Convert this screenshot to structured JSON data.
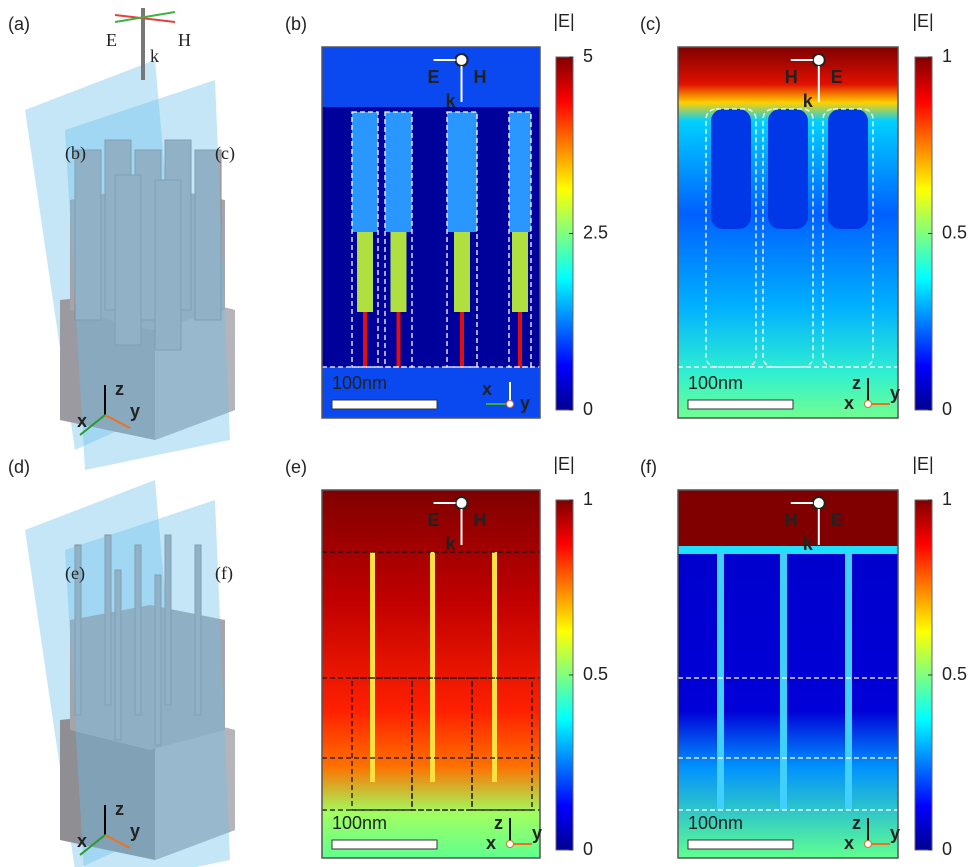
{
  "panels": [
    {
      "label": "(a)",
      "field": [
        "E",
        "H",
        "k"
      ],
      "plane_labels": [
        "(b)",
        "(c)"
      ],
      "axes": [
        "z",
        "x",
        "y"
      ]
    },
    {
      "label": "(b)",
      "colorbar_title": "|E|",
      "colorbar_ticks": [
        5,
        2.5,
        0
      ],
      "field": [
        "E",
        "H",
        "k"
      ],
      "scale_bar": "100nm",
      "axes": [
        "x",
        "y"
      ]
    },
    {
      "label": "(c)",
      "colorbar_title": "|E|",
      "colorbar_ticks": [
        1,
        0.5,
        0
      ],
      "field": [
        "H",
        "E",
        "k"
      ],
      "scale_bar": "100nm",
      "axes": [
        "z",
        "x",
        "y"
      ]
    },
    {
      "label": "(d)",
      "plane_labels": [
        "(e)",
        "(f)"
      ],
      "axes": [
        "z",
        "x",
        "y"
      ]
    },
    {
      "label": "(e)",
      "colorbar_title": "|E|",
      "colorbar_ticks": [
        1,
        0.5,
        0
      ],
      "field": [
        "E",
        "H",
        "k"
      ],
      "scale_bar": "100nm",
      "axes": [
        "z",
        "x",
        "y"
      ]
    },
    {
      "label": "(f)",
      "colorbar_title": "|E|",
      "colorbar_ticks": [
        1,
        0.5,
        0
      ],
      "field": [
        "H",
        "E",
        "k"
      ],
      "scale_bar": "100nm",
      "axes": [
        "z",
        "x",
        "y"
      ]
    }
  ]
}
